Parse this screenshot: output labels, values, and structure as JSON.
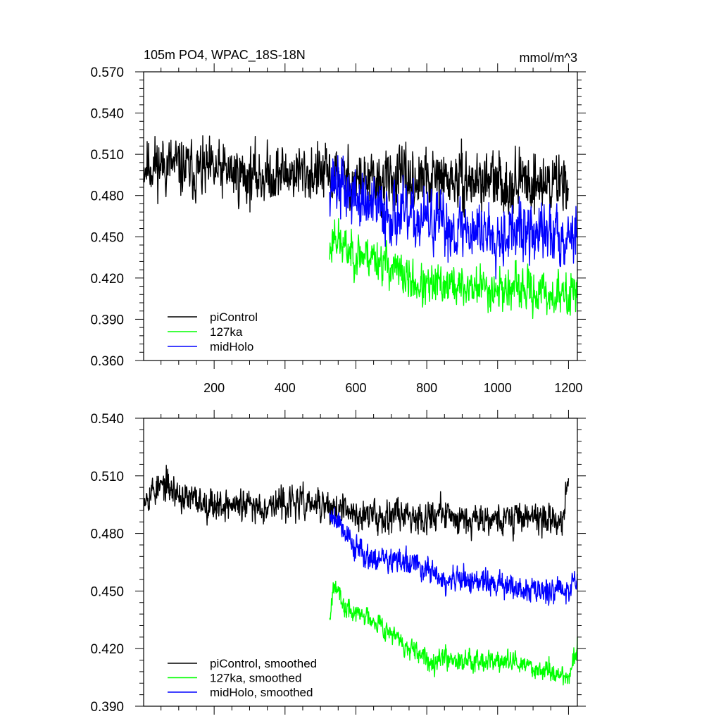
{
  "chart_data": [
    {
      "type": "line",
      "title": "105m PO4, WPAC_18S-18N",
      "units": "mmol/m^3",
      "xlim": [
        1,
        1225
      ],
      "ylim": [
        0.36,
        0.57
      ],
      "xticks": [
        200,
        400,
        600,
        800,
        1000,
        1200
      ],
      "xtick_labels": [
        "200",
        "400",
        "600",
        "800",
        "1000",
        "1200"
      ],
      "yticks": [
        0.36,
        0.39,
        0.42,
        0.45,
        0.48,
        0.51,
        0.54,
        0.57
      ],
      "ytick_labels": [
        "0.360",
        "0.390",
        "0.420",
        "0.450",
        "0.480",
        "0.510",
        "0.540",
        "0.570"
      ],
      "grid": false,
      "legend_position": "bottom-left",
      "series": [
        {
          "name": "piControl",
          "color": "#000000",
          "x": [
            1,
            60,
            120,
            180,
            240,
            300,
            360,
            420,
            480,
            530,
            600,
            660,
            720,
            780,
            840,
            900,
            960,
            1020,
            1080,
            1140,
            1200
          ],
          "mean": [
            0.502,
            0.503,
            0.499,
            0.497,
            0.497,
            0.494,
            0.495,
            0.497,
            0.496,
            0.494,
            0.491,
            0.489,
            0.492,
            0.49,
            0.492,
            0.49,
            0.491,
            0.488,
            0.491,
            0.488,
            0.493
          ],
          "noise": 0.015,
          "seed": 11
        },
        {
          "name": "127ka",
          "color": "#00ff00",
          "x": [
            526,
            540,
            560,
            600,
            650,
            700,
            750,
            800,
            850,
            900,
            950,
            1000,
            1050,
            1100,
            1150,
            1200,
            1225
          ],
          "mean": [
            0.438,
            0.455,
            0.442,
            0.438,
            0.436,
            0.428,
            0.418,
            0.412,
            0.416,
            0.413,
            0.414,
            0.412,
            0.412,
            0.41,
            0.408,
            0.406,
            0.418
          ],
          "noise": 0.011,
          "seed": 23
        },
        {
          "name": "midHolo",
          "color": "#0000ff",
          "x": [
            526,
            540,
            560,
            600,
            650,
            700,
            750,
            800,
            850,
            900,
            950,
            1000,
            1050,
            1100,
            1150,
            1200,
            1225
          ],
          "mean": [
            0.492,
            0.491,
            0.485,
            0.478,
            0.47,
            0.468,
            0.462,
            0.462,
            0.457,
            0.456,
            0.455,
            0.454,
            0.454,
            0.452,
            0.452,
            0.452,
            0.455
          ],
          "noise": 0.016,
          "seed": 37
        }
      ]
    },
    {
      "type": "line",
      "title": "",
      "xlim": [
        1,
        1225
      ],
      "ylim": [
        0.39,
        0.54
      ],
      "xticks": [
        200,
        400,
        600,
        800,
        1000,
        1200
      ],
      "xtick_labels": [],
      "yticks": [
        0.39,
        0.42,
        0.45,
        0.48,
        0.51,
        0.54
      ],
      "ytick_labels": [
        "0.390",
        "0.420",
        "0.450",
        "0.480",
        "0.510",
        "0.540"
      ],
      "grid": false,
      "legend_position": "bottom-left",
      "series": [
        {
          "name": "piControl, smoothed",
          "color": "#000000",
          "x": [
            1,
            60,
            120,
            180,
            240,
            300,
            360,
            420,
            480,
            530,
            600,
            660,
            720,
            780,
            840,
            900,
            960,
            1020,
            1080,
            1140,
            1180,
            1200
          ],
          "mean": [
            0.5,
            0.505,
            0.498,
            0.496,
            0.495,
            0.494,
            0.495,
            0.496,
            0.495,
            0.493,
            0.49,
            0.489,
            0.491,
            0.489,
            0.49,
            0.488,
            0.489,
            0.487,
            0.49,
            0.487,
            0.486,
            0.508
          ],
          "noise": 0.006,
          "seed": 53
        },
        {
          "name": "127ka, smoothed",
          "color": "#00ff00",
          "x": [
            526,
            540,
            560,
            600,
            650,
            700,
            750,
            800,
            850,
            900,
            950,
            1000,
            1050,
            1100,
            1150,
            1200,
            1225
          ],
          "mean": [
            0.437,
            0.458,
            0.442,
            0.438,
            0.436,
            0.428,
            0.419,
            0.414,
            0.416,
            0.414,
            0.415,
            0.413,
            0.413,
            0.41,
            0.408,
            0.405,
            0.421
          ],
          "noise": 0.004,
          "seed": 67
        },
        {
          "name": "midHolo, smoothed",
          "color": "#0000ff",
          "x": [
            526,
            540,
            560,
            600,
            650,
            700,
            750,
            800,
            850,
            900,
            950,
            1000,
            1050,
            1100,
            1150,
            1200,
            1225
          ],
          "mean": [
            0.49,
            0.49,
            0.484,
            0.472,
            0.467,
            0.466,
            0.464,
            0.462,
            0.454,
            0.456,
            0.455,
            0.453,
            0.452,
            0.45,
            0.451,
            0.452,
            0.456
          ],
          "noise": 0.005,
          "seed": 79
        }
      ]
    }
  ]
}
